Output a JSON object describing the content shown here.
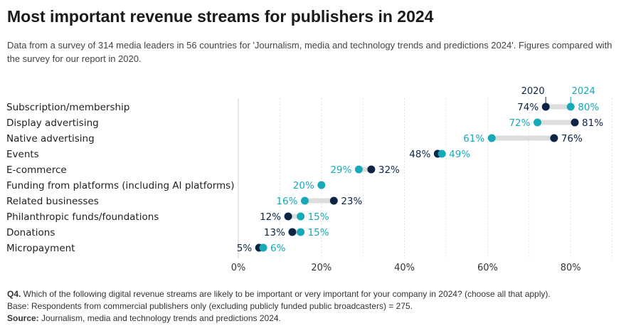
{
  "title": "Most important revenue streams for publishers in 2024",
  "subtitle": "Data from a survey of 314 media leaders in 56 countries for 'Journalism, media and technology trends and predictions 2024'. Figures compared with the survey for our report in 2020.",
  "colors": {
    "y2020": "#0d2545",
    "y2024": "#16a9b8",
    "connector": "#dddddd",
    "grid": "#cfcfcf",
    "text": "#1f1f1f"
  },
  "chart_data": {
    "type": "dot-plot",
    "series": [
      {
        "name": "2020",
        "color": "#0d2545"
      },
      {
        "name": "2024",
        "color": "#16a9b8"
      }
    ],
    "categories": [
      "Subscription/membership",
      "Display advertising",
      "Native advertising",
      "Events",
      "E-commerce",
      "Funding from platforms (including AI platforms)",
      "Related businesses",
      "Philanthropic funds/foundations",
      "Donations",
      "Micropayment"
    ],
    "values_2020": [
      74,
      81,
      76,
      48,
      32,
      null,
      23,
      12,
      13,
      5
    ],
    "values_2024": [
      80,
      72,
      61,
      49,
      29,
      20,
      16,
      15,
      15,
      6
    ],
    "xlim": [
      0,
      90
    ],
    "xticks": [
      0,
      20,
      40,
      60,
      80
    ],
    "tick_suffix": "%",
    "grid": true
  },
  "footnote": {
    "q_label": "Q4.",
    "q_text": " Which of the following digital revenue streams are likely to be important or very important for your company in 2024? (choose all that apply).",
    "base_text": "Base: Respondents from commercial publishers only (excluding publicly funded public broadcasters) = 275.",
    "source_label": "Source:",
    "source_text": " Journalism, media and technology trends and predictions 2024."
  }
}
